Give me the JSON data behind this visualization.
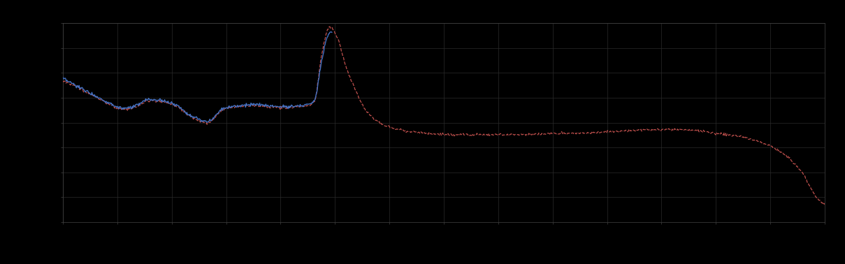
{
  "background_color": "#000000",
  "plot_bg_color": "#000000",
  "grid_color": "#2a2a2a",
  "axis_color": "#444444",
  "tick_color": "#444444",
  "blue_line_color": "#4472c4",
  "red_line_color": "#c0504d",
  "figsize": [
    12.09,
    3.78
  ],
  "dpi": 100,
  "xlim": [
    0,
    100
  ],
  "ylim": [
    0,
    10
  ],
  "x_gridlines": 14,
  "y_gridlines": 8,
  "legend_blue_label": "",
  "legend_red_label": ""
}
